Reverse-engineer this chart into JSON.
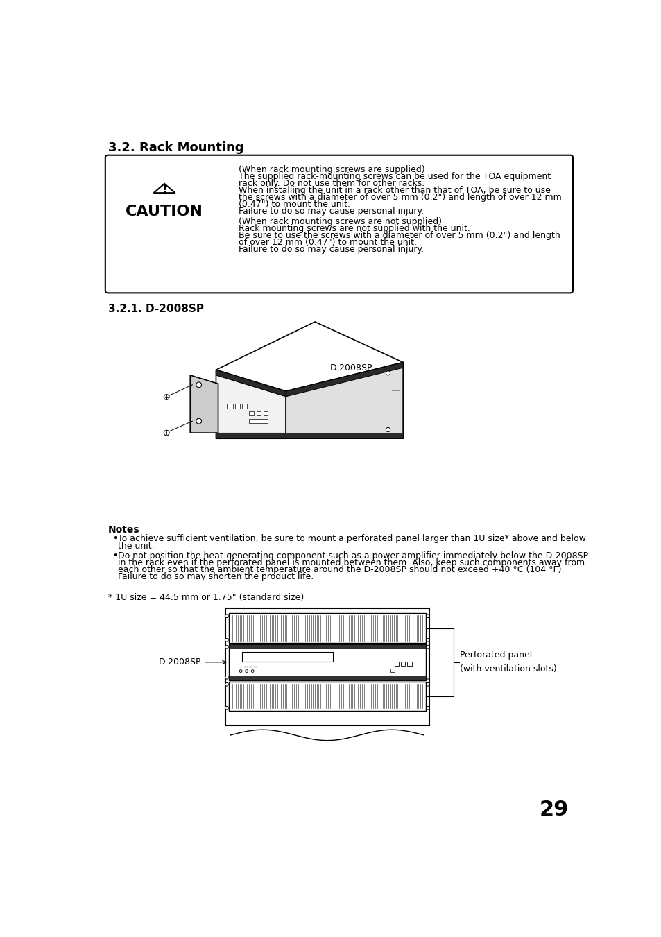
{
  "bg_color": "#ffffff",
  "page_number": "29",
  "section_title": "3.2. Rack Mounting",
  "subsection_title": "3.2.1. D-2008SP",
  "caution_text1_header": "(When rack mounting screws are supplied)",
  "caution_text1_l1": "The supplied rack-mounting screws can be used for the TOA equipment",
  "caution_text1_l2": "rack only. Do not use them for other racks.",
  "caution_text1_l3": "When installing the unit in a rack other than that of TOA, be sure to use",
  "caution_text1_l4": "the screws with a diameter of over 5 mm (0.2\") and length of over 12 mm",
  "caution_text1_l5": "(0.47\") to mount the unit.",
  "caution_text1_l6": "Failure to do so may cause personal injury.",
  "caution_text2_header": "(When rack mounting screws are not supplied)",
  "caution_text2_l1": "Rack mounting screws are not supplied with the unit.",
  "caution_text2_l2": "Be sure to use the screws with a diameter of over 5 mm (0.2\") and length",
  "caution_text2_l3": "of over 12 mm (0.47\") to mount the unit.",
  "caution_text2_l4": "Failure to do so may cause personal injury.",
  "notes_title": "Notes",
  "note1_l1": "To achieve sufficient ventilation, be sure to mount a perforated panel larger than 1U size* above and below",
  "note1_l2": "the unit.",
  "note2_l1": "Do not position the heat-generating component such as a power amplifier immediately below the D-2008SP",
  "note2_l2": "in the rack even if the perforated panel is mounted between them. Also, keep such components away from",
  "note2_l3": "each other so that the ambient temperature around the D-2008SP should not exceed +40 °C (104 °F).",
  "note2_l4": "Failure to do so may shorten the product life.",
  "footnote": "* 1U size = 44.5 mm or 1.75\" (standard size)",
  "diagram1_label": "D-2008SP",
  "diagram2_label_left": "D-2008SP",
  "diagram2_label_right1": "Perforated panel",
  "diagram2_label_right2": "(with ventilation slots)"
}
